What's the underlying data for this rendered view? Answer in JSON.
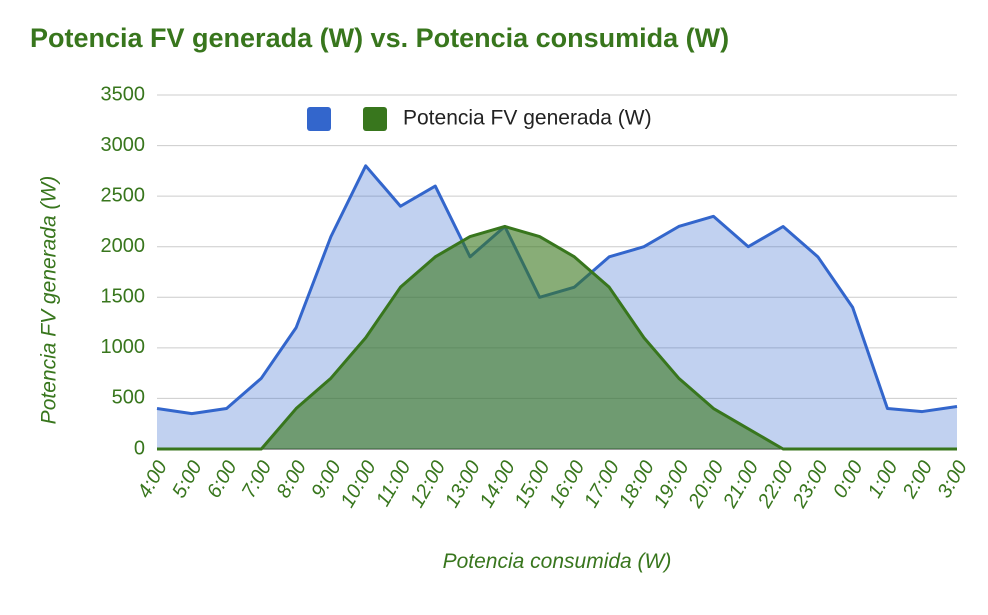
{
  "chart_data": {
    "type": "area",
    "title": "Potencia FV generada (W) vs. Potencia consumida (W)",
    "y_label": "Potencia FV generada (W)",
    "x_label": "Potencia consumida (W)",
    "categories": [
      "4:00",
      "5:00",
      "6:00",
      "7:00",
      "8:00",
      "9:00",
      "10:00",
      "11:00",
      "12:00",
      "13:00",
      "14:00",
      "15:00",
      "16:00",
      "17:00",
      "18:00",
      "19:00",
      "20:00",
      "21:00",
      "22:00",
      "23:00",
      "0:00",
      "1:00",
      "2:00",
      "3:00"
    ],
    "series": [
      {
        "color": "#3366cc",
        "values": [
          400,
          350,
          400,
          700,
          1200,
          2100,
          2800,
          2400,
          2600,
          1900,
          2200,
          1500,
          1600,
          1900,
          2000,
          2200,
          2300,
          2000,
          2200,
          1900,
          1400,
          400,
          370,
          420
        ]
      },
      {
        "name": "Potencia FV generada (W)",
        "color": "#38761d",
        "values": [
          0,
          0,
          0,
          0,
          400,
          700,
          1100,
          1600,
          1900,
          2100,
          2200,
          2100,
          1900,
          1600,
          1100,
          700,
          400,
          200,
          0,
          0,
          0,
          0,
          0,
          0
        ]
      }
    ],
    "ylim": [
      0,
      3500
    ],
    "yticks": [
      0,
      500,
      1000,
      1500,
      2000,
      2500,
      3000,
      3500
    ],
    "grid": true,
    "legend": "top"
  }
}
